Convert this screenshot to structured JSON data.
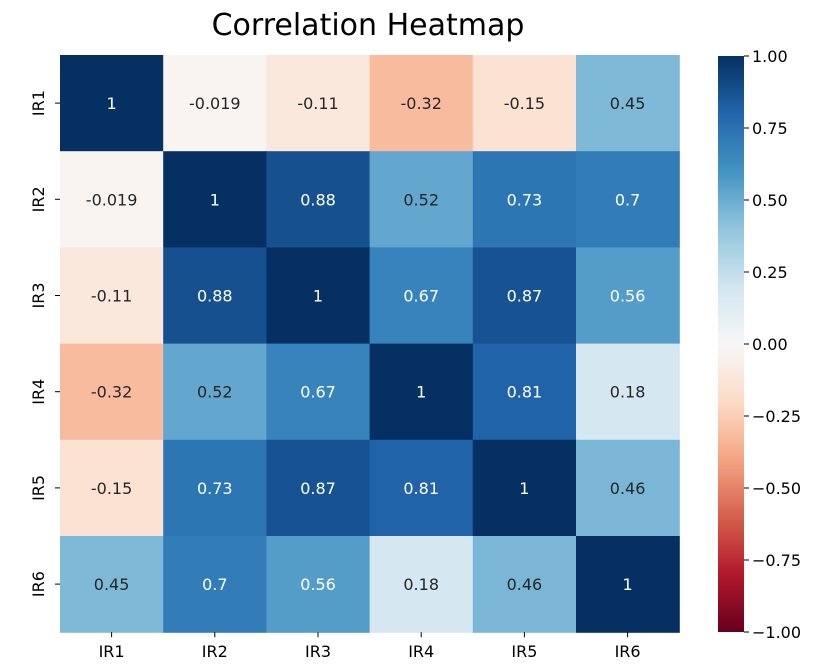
{
  "chart_data": {
    "type": "heatmap",
    "title": "Correlation Heatmap",
    "xlabel": "",
    "ylabel": "",
    "x_categories": [
      "IR1",
      "IR2",
      "IR3",
      "IR4",
      "IR5",
      "IR6"
    ],
    "y_categories": [
      "IR1",
      "IR2",
      "IR3",
      "IR4",
      "IR5",
      "IR6"
    ],
    "values": [
      [
        1,
        -0.019,
        -0.11,
        -0.32,
        -0.15,
        0.45
      ],
      [
        -0.019,
        1,
        0.88,
        0.52,
        0.73,
        0.7
      ],
      [
        -0.11,
        0.88,
        1,
        0.67,
        0.87,
        0.56
      ],
      [
        -0.32,
        0.52,
        0.67,
        1,
        0.81,
        0.18
      ],
      [
        -0.15,
        0.73,
        0.87,
        0.81,
        1,
        0.46
      ],
      [
        0.45,
        0.7,
        0.56,
        0.18,
        0.46,
        1
      ]
    ],
    "annotations": [
      [
        "1",
        "-0.019",
        "-0.11",
        "-0.32",
        "-0.15",
        "0.45"
      ],
      [
        "-0.019",
        "1",
        "0.88",
        "0.52",
        "0.73",
        "0.7"
      ],
      [
        "-0.11",
        "0.88",
        "1",
        "0.67",
        "0.87",
        "0.56"
      ],
      [
        "-0.32",
        "0.52",
        "0.67",
        "1",
        "0.81",
        "0.18"
      ],
      [
        "-0.15",
        "0.73",
        "0.87",
        "0.81",
        "1",
        "0.46"
      ],
      [
        "0.45",
        "0.7",
        "0.56",
        "0.18",
        "0.46",
        "1"
      ]
    ],
    "colorscale": "RdBu",
    "vmin": -1,
    "vmax": 1,
    "colorbar_ticks": [
      "1.00",
      "0.75",
      "0.50",
      "0.25",
      "0.00",
      "−0.25",
      "−0.50",
      "−0.75",
      "−1.00"
    ],
    "colorbar_tick_values": [
      1,
      0.75,
      0.5,
      0.25,
      0,
      -0.25,
      -0.5,
      -0.75,
      -1
    ],
    "grid": false,
    "legend": "colorbar-right"
  }
}
